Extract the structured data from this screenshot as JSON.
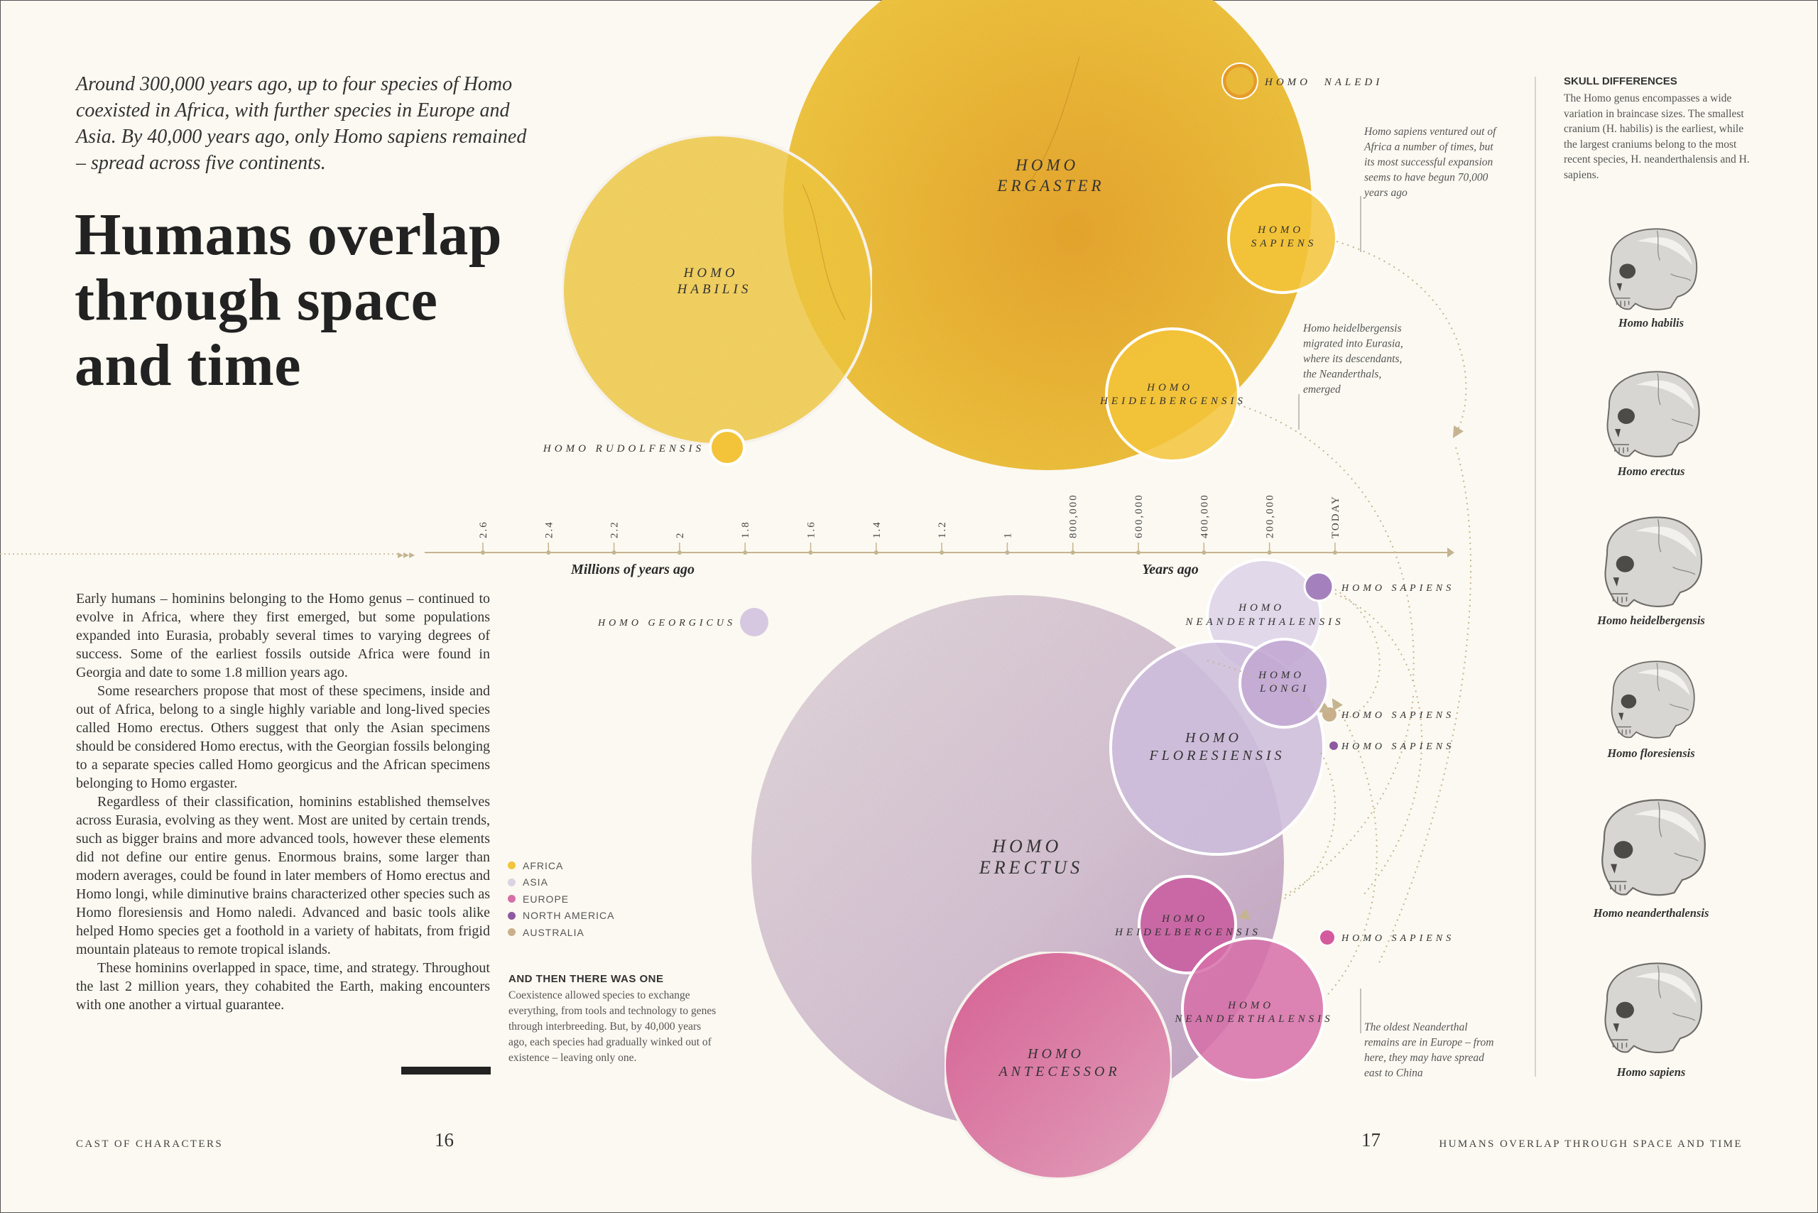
{
  "intro": "Around 300,000 years ago, up to four species of Homo coexisted in Africa, with further species in Europe and Asia. By 40,000 years ago, only Homo sapiens remained – spread across five continents.",
  "headline": "Humans overlap through space and time",
  "body": [
    "Early humans – hominins belonging to the Homo genus – continued to evolve in Africa, where they first emerged, but some populations expanded into Eurasia, probably several times to varying degrees of success. Some of the earliest fossils outside Africa were found in Georgia and date to some 1.8 million years ago.",
    "Some researchers propose that most of these specimens, inside and out of Africa, belong to a single highly variable and long-lived species called Homo erectus. Others suggest that only the Asian specimens should be considered Homo erectus, with the Georgian fossils belonging to a separate species called Homo georgicus and the African specimens belonging to Homo ergaster.",
    "Regardless of their classification, hominins established themselves across Eurasia, evolving as they went. Most are united by certain trends, such as bigger brains and more advanced tools, however these elements did not define our entire genus. Enormous brains, some larger than modern averages, could be found in later members of Homo erectus and Homo longi, while diminutive brains characterized other species such as Homo floresiensis and Homo naledi. Advanced and basic tools alike helped Homo species get a foothold in a variety of habitats, from frigid mountain plateaus to remote tropical islands.",
    "These hominins overlapped in space, time, and strategy. Throughout the last 2 million years, they cohabited the Earth, making encounters with one another a virtual guarantee."
  ],
  "legend": [
    {
      "label": "AFRICA",
      "color": "#f2c43c"
    },
    {
      "label": "ASIA",
      "color": "#dcd2e4"
    },
    {
      "label": "EUROPE",
      "color": "#d66fa8"
    },
    {
      "label": "NORTH AMERICA",
      "color": "#8e5aa0"
    },
    {
      "label": "AUSTRALIA",
      "color": "#c9b08a"
    }
  ],
  "sidebox": {
    "title": "AND THEN THERE WAS ONE",
    "text": "Coexistence allowed species to exchange everything, from tools and technology to genes through interbreeding. But, by 40,000 years ago, each species had gradually winked out of existence – leaving only one."
  },
  "timeline": {
    "millions_label": "Millions of years ago",
    "years_label": "Years ago",
    "million_ticks": [
      "2.6",
      "2.4",
      "2.2",
      "2",
      "1.8",
      "1.6",
      "1.4",
      "1.2",
      "1"
    ],
    "year_ticks": [
      "800,000",
      "600,000",
      "400,000",
      "200,000",
      "TODAY"
    ]
  },
  "africa_species": [
    {
      "name": [
        "HOMO",
        "ERGASTER"
      ]
    },
    {
      "name": [
        "HOMO",
        "HABILIS"
      ]
    },
    {
      "name": [
        "HOMO",
        "NALEDI"
      ]
    },
    {
      "name": [
        "HOMO",
        "SAPIENS"
      ]
    },
    {
      "name": [
        "HOMO",
        "HEIDELBERGENSIS"
      ]
    },
    {
      "name": [
        "HOMO RUDOLFENSIS"
      ]
    }
  ],
  "eurasia_species": [
    {
      "name": [
        "HOMO",
        "ERECTUS"
      ],
      "region": "ASIA"
    },
    {
      "name": [
        "HOMO",
        "NEANDERTHALENSIS"
      ],
      "region": "ASIA"
    },
    {
      "name": [
        "HOMO",
        "LONGI"
      ],
      "region": "ASIA"
    },
    {
      "name": [
        "HOMO",
        "FLORESIENSIS"
      ],
      "region": "ASIA"
    },
    {
      "name": [
        "HOMO",
        "HEIDELBERGENSIS"
      ],
      "region": "EUROPE"
    },
    {
      "name": [
        "HOMO",
        "NEANDERTHALENSIS"
      ],
      "region": "EUROPE"
    },
    {
      "name": [
        "HOMO",
        "ANTECESSOR"
      ],
      "region": "EUROPE"
    },
    {
      "name": [
        "HOMO GEORGICUS"
      ],
      "region": "ASIA"
    },
    {
      "name": [
        "HOMO SAPIENS"
      ],
      "region": "ASIA"
    },
    {
      "name": [
        "HOMO SAPIENS"
      ],
      "region": "AUSTRALIA"
    },
    {
      "name": [
        "HOMO SAPIENS"
      ],
      "region": "NORTH AMERICA"
    },
    {
      "name": [
        "HOMO SAPIENS"
      ],
      "region": "EUROPE"
    }
  ],
  "annotations": {
    "sapiens_out": [
      "Homo sapiens ventured out of",
      "Africa a number of times, but",
      "its most successful expansion",
      "seems to have begun 70,000",
      "years ago"
    ],
    "heidel_eurasia": [
      "Homo heidelbergensis",
      "migrated into Eurasia,",
      "where its descendants,",
      "the Neanderthals,",
      "emerged"
    ],
    "oldest_neanderthal": [
      "The oldest Neanderthal",
      "remains are in Europe – from",
      "here, they may have spread",
      "east to China"
    ]
  },
  "skulls": {
    "title": "SKULL DIFFERENCES",
    "text": "The Homo genus encompasses a wide variation in braincase sizes. The smallest cranium (H. habilis) is the earliest, while the largest craniums belong to the most recent species, H. neanderthalensis and H. sapiens.",
    "items": [
      "Homo habilis",
      "Homo erectus",
      "Homo heidelbergensis",
      "Homo floresiensis",
      "Homo neanderthalensis",
      "Homo sapiens"
    ]
  },
  "footer": {
    "left": "CAST OF CHARACTERS",
    "left_page": "16",
    "right_page": "17",
    "right": "HUMANS OVERLAP THROUGH SPACE AND TIME"
  }
}
